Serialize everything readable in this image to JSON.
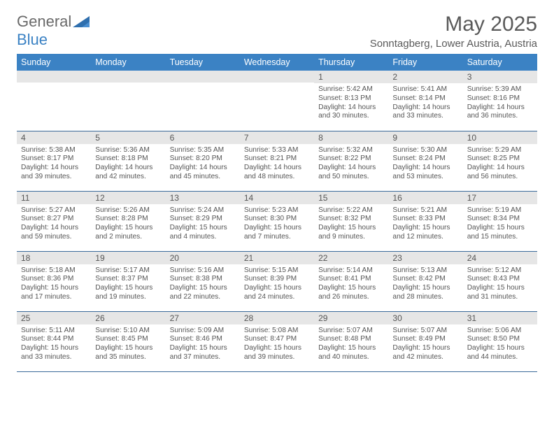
{
  "logo": {
    "part1": "General",
    "part2": "Blue"
  },
  "header": {
    "title": "May 2025",
    "subtitle": "Sonntagberg, Lower Austria, Austria"
  },
  "colors": {
    "header_bg": "#3b82c4",
    "header_text": "#ffffff",
    "daynum_bg": "#e6e6e6",
    "text": "#555555",
    "border": "#3b6a9a"
  },
  "day_names": [
    "Sunday",
    "Monday",
    "Tuesday",
    "Wednesday",
    "Thursday",
    "Friday",
    "Saturday"
  ],
  "weeks": [
    [
      {
        "n": "",
        "sr": "",
        "ss": "",
        "dl": ""
      },
      {
        "n": "",
        "sr": "",
        "ss": "",
        "dl": ""
      },
      {
        "n": "",
        "sr": "",
        "ss": "",
        "dl": ""
      },
      {
        "n": "",
        "sr": "",
        "ss": "",
        "dl": ""
      },
      {
        "n": "1",
        "sr": "5:42 AM",
        "ss": "8:13 PM",
        "dl": "14 hours and 30 minutes."
      },
      {
        "n": "2",
        "sr": "5:41 AM",
        "ss": "8:14 PM",
        "dl": "14 hours and 33 minutes."
      },
      {
        "n": "3",
        "sr": "5:39 AM",
        "ss": "8:16 PM",
        "dl": "14 hours and 36 minutes."
      }
    ],
    [
      {
        "n": "4",
        "sr": "5:38 AM",
        "ss": "8:17 PM",
        "dl": "14 hours and 39 minutes."
      },
      {
        "n": "5",
        "sr": "5:36 AM",
        "ss": "8:18 PM",
        "dl": "14 hours and 42 minutes."
      },
      {
        "n": "6",
        "sr": "5:35 AM",
        "ss": "8:20 PM",
        "dl": "14 hours and 45 minutes."
      },
      {
        "n": "7",
        "sr": "5:33 AM",
        "ss": "8:21 PM",
        "dl": "14 hours and 48 minutes."
      },
      {
        "n": "8",
        "sr": "5:32 AM",
        "ss": "8:22 PM",
        "dl": "14 hours and 50 minutes."
      },
      {
        "n": "9",
        "sr": "5:30 AM",
        "ss": "8:24 PM",
        "dl": "14 hours and 53 minutes."
      },
      {
        "n": "10",
        "sr": "5:29 AM",
        "ss": "8:25 PM",
        "dl": "14 hours and 56 minutes."
      }
    ],
    [
      {
        "n": "11",
        "sr": "5:27 AM",
        "ss": "8:27 PM",
        "dl": "14 hours and 59 minutes."
      },
      {
        "n": "12",
        "sr": "5:26 AM",
        "ss": "8:28 PM",
        "dl": "15 hours and 2 minutes."
      },
      {
        "n": "13",
        "sr": "5:24 AM",
        "ss": "8:29 PM",
        "dl": "15 hours and 4 minutes."
      },
      {
        "n": "14",
        "sr": "5:23 AM",
        "ss": "8:30 PM",
        "dl": "15 hours and 7 minutes."
      },
      {
        "n": "15",
        "sr": "5:22 AM",
        "ss": "8:32 PM",
        "dl": "15 hours and 9 minutes."
      },
      {
        "n": "16",
        "sr": "5:21 AM",
        "ss": "8:33 PM",
        "dl": "15 hours and 12 minutes."
      },
      {
        "n": "17",
        "sr": "5:19 AM",
        "ss": "8:34 PM",
        "dl": "15 hours and 15 minutes."
      }
    ],
    [
      {
        "n": "18",
        "sr": "5:18 AM",
        "ss": "8:36 PM",
        "dl": "15 hours and 17 minutes."
      },
      {
        "n": "19",
        "sr": "5:17 AM",
        "ss": "8:37 PM",
        "dl": "15 hours and 19 minutes."
      },
      {
        "n": "20",
        "sr": "5:16 AM",
        "ss": "8:38 PM",
        "dl": "15 hours and 22 minutes."
      },
      {
        "n": "21",
        "sr": "5:15 AM",
        "ss": "8:39 PM",
        "dl": "15 hours and 24 minutes."
      },
      {
        "n": "22",
        "sr": "5:14 AM",
        "ss": "8:41 PM",
        "dl": "15 hours and 26 minutes."
      },
      {
        "n": "23",
        "sr": "5:13 AM",
        "ss": "8:42 PM",
        "dl": "15 hours and 28 minutes."
      },
      {
        "n": "24",
        "sr": "5:12 AM",
        "ss": "8:43 PM",
        "dl": "15 hours and 31 minutes."
      }
    ],
    [
      {
        "n": "25",
        "sr": "5:11 AM",
        "ss": "8:44 PM",
        "dl": "15 hours and 33 minutes."
      },
      {
        "n": "26",
        "sr": "5:10 AM",
        "ss": "8:45 PM",
        "dl": "15 hours and 35 minutes."
      },
      {
        "n": "27",
        "sr": "5:09 AM",
        "ss": "8:46 PM",
        "dl": "15 hours and 37 minutes."
      },
      {
        "n": "28",
        "sr": "5:08 AM",
        "ss": "8:47 PM",
        "dl": "15 hours and 39 minutes."
      },
      {
        "n": "29",
        "sr": "5:07 AM",
        "ss": "8:48 PM",
        "dl": "15 hours and 40 minutes."
      },
      {
        "n": "30",
        "sr": "5:07 AM",
        "ss": "8:49 PM",
        "dl": "15 hours and 42 minutes."
      },
      {
        "n": "31",
        "sr": "5:06 AM",
        "ss": "8:50 PM",
        "dl": "15 hours and 44 minutes."
      }
    ]
  ],
  "labels": {
    "sunrise": "Sunrise: ",
    "sunset": "Sunset: ",
    "daylight": "Daylight: "
  }
}
